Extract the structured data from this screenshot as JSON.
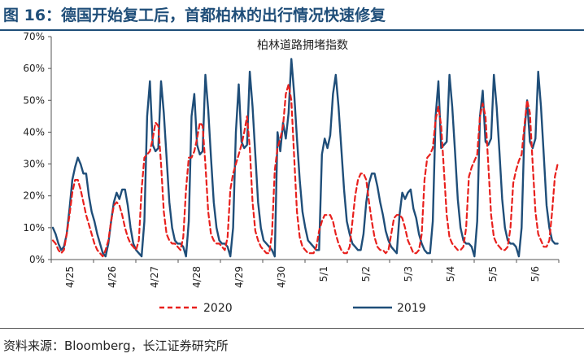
{
  "figure_title": "图 16：德国开始复工后，首都柏林的出行情况快速修复",
  "source_text": "资料来源：Bloomberg，长江证券研究所",
  "chart_data": {
    "type": "line",
    "title": "柏林道路拥堵指数",
    "xlabel": "",
    "ylabel": "",
    "ylim": [
      0,
      70
    ],
    "y_ticks": [
      "0%",
      "10%",
      "20%",
      "30%",
      "40%",
      "50%",
      "60%",
      "70%"
    ],
    "x_tick_labels": [
      "4/25",
      "4/26",
      "4/27",
      "4/28",
      "4/29",
      "4/30",
      "5/1",
      "5/2",
      "5/3",
      "5/4",
      "5/5",
      "5/6"
    ],
    "grid": false,
    "legend_position": "bottom",
    "series": [
      {
        "name": "2020",
        "color": "#e8201d",
        "style": "dashed",
        "values": [
          6,
          5,
          3,
          2,
          3,
          8,
          14,
          21,
          25,
          25,
          22,
          18,
          14,
          11,
          8,
          5,
          3,
          2,
          1,
          3,
          6,
          12,
          17,
          18,
          17,
          14,
          10,
          7,
          5,
          4,
          3,
          6,
          22,
          32,
          33,
          34,
          38,
          43,
          42,
          30,
          15,
          8,
          6,
          5,
          5,
          4,
          3,
          7,
          22,
          32,
          32,
          34,
          38,
          43,
          42,
          30,
          15,
          8,
          6,
          5,
          5,
          4,
          3,
          7,
          22,
          27,
          30,
          33,
          36,
          40,
          45,
          35,
          18,
          9,
          6,
          4,
          3,
          2,
          2,
          8,
          28,
          35,
          38,
          42,
          52,
          55,
          50,
          32,
          15,
          7,
          4,
          3,
          2,
          2,
          2,
          4,
          9,
          12,
          14,
          14,
          14,
          12,
          8,
          5,
          3,
          2,
          2,
          4,
          12,
          20,
          25,
          27,
          27,
          25,
          18,
          12,
          7,
          4,
          3,
          3,
          2,
          3,
          8,
          13,
          14,
          14,
          13,
          10,
          6,
          4,
          2,
          2,
          3,
          8,
          25,
          32,
          33,
          35,
          44,
          48,
          42,
          28,
          14,
          7,
          5,
          4,
          3,
          3,
          4,
          10,
          26,
          29,
          31,
          33,
          45,
          49,
          45,
          30,
          14,
          7,
          5,
          4,
          3,
          3,
          4,
          10,
          24,
          28,
          31,
          33,
          42,
          50,
          46,
          30,
          15,
          8,
          6,
          4,
          4,
          6,
          15,
          26,
          30
        ]
      },
      {
        "name": "2019",
        "color": "#1f4e79",
        "style": "solid",
        "values": [
          10,
          8,
          5,
          3,
          4,
          8,
          16,
          25,
          29,
          32,
          30,
          27,
          27,
          20,
          15,
          12,
          8,
          5,
          2,
          1,
          5,
          12,
          18,
          21,
          19,
          22,
          22,
          17,
          10,
          5,
          3,
          2,
          1,
          12,
          45,
          56,
          36,
          34,
          35,
          56,
          46,
          32,
          18,
          10,
          6,
          5,
          5,
          4,
          1,
          12,
          45,
          52,
          36,
          33,
          34,
          58,
          47,
          32,
          18,
          10,
          6,
          5,
          5,
          4,
          1,
          10,
          40,
          55,
          37,
          35,
          36,
          59,
          48,
          33,
          18,
          10,
          6,
          5,
          4,
          3,
          1,
          40,
          34,
          43,
          38,
          46,
          63,
          52,
          38,
          25,
          15,
          10,
          6,
          5,
          4,
          3,
          3,
          33,
          38,
          35,
          39,
          52,
          58,
          48,
          35,
          22,
          12,
          8,
          5,
          4,
          3,
          3,
          8,
          18,
          24,
          27,
          27,
          23,
          18,
          14,
          9,
          6,
          4,
          3,
          2,
          14,
          21,
          19,
          21,
          22,
          16,
          13,
          8,
          5,
          3,
          2,
          2,
          12,
          45,
          56,
          35,
          36,
          37,
          58,
          48,
          34,
          19,
          10,
          6,
          5,
          5,
          4,
          1,
          12,
          45,
          53,
          37,
          36,
          38,
          58,
          48,
          34,
          19,
          10,
          6,
          5,
          5,
          4,
          1,
          10,
          40,
          50,
          37,
          35,
          38,
          59,
          48,
          33,
          17,
          10,
          6,
          5,
          5
        ]
      }
    ]
  }
}
